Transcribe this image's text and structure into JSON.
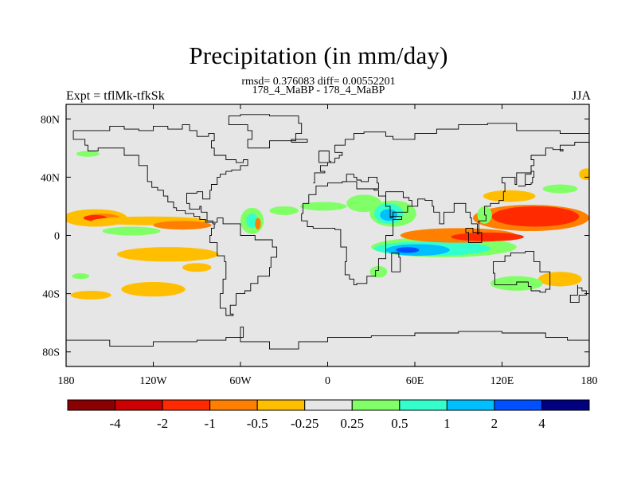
{
  "figure": {
    "title": "Precipitation (in mm/day)",
    "stats": "rmsd= 0.376083 diff= 0.00552201",
    "case": "178_4_MaBP - 178_4_MaBP",
    "left_label": "Expt = tflMk-tfkSk",
    "right_label": "JJA"
  },
  "chart_data": {
    "type": "heatmap",
    "variable": "Precipitation difference",
    "units": "mm/day",
    "season": "JJA",
    "x_axis": {
      "range": [
        -180,
        180
      ],
      "ticks": [
        -180,
        -120,
        -60,
        0,
        60,
        120,
        180
      ],
      "tick_labels": [
        "180",
        "120W",
        "60W",
        "0",
        "60E",
        "120E",
        "180"
      ]
    },
    "y_axis": {
      "range": [
        -90,
        90
      ],
      "ticks": [
        80,
        40,
        0,
        -40,
        -80
      ],
      "tick_labels": [
        "80N",
        "40N",
        "0",
        "40S",
        "80S"
      ]
    },
    "colorbar": {
      "colors": [
        "#8b0000",
        "#cc0000",
        "#ff2a00",
        "#ff7f00",
        "#ffbf00",
        "#e6e6e6",
        "#80ff66",
        "#33ffcc",
        "#00bfff",
        "#0050ff",
        "#000080"
      ],
      "boundaries": [
        "-4",
        "-2",
        "-1",
        "-0.5",
        "-0.25",
        "0.25",
        "0.5",
        "1",
        "2",
        "4"
      ]
    },
    "background_color": "#e6e6e6",
    "anomalies": [
      {
        "lon": -160,
        "lat": 12,
        "rlon": 22,
        "rlat": 6,
        "level": 4
      },
      {
        "lon": -155,
        "lat": 12,
        "rlon": 12,
        "rlat": 3,
        "level": 3
      },
      {
        "lon": -160,
        "lat": 12,
        "rlon": 8,
        "rlat": 2,
        "level": 2
      },
      {
        "lon": -122,
        "lat": 10,
        "rlon": 40,
        "rlat": 3,
        "level": 4
      },
      {
        "lon": -100,
        "lat": 7,
        "rlon": 20,
        "rlat": 3,
        "level": 3
      },
      {
        "lon": -135,
        "lat": 3,
        "rlon": 20,
        "rlat": 3,
        "level": 6
      },
      {
        "lon": -110,
        "lat": -13,
        "rlon": 35,
        "rlat": 5,
        "level": 4
      },
      {
        "lon": -90,
        "lat": -22,
        "rlon": 10,
        "rlat": 3,
        "level": 4
      },
      {
        "lon": -120,
        "lat": -37,
        "rlon": 22,
        "rlat": 5,
        "level": 4
      },
      {
        "lon": -163,
        "lat": -41,
        "rlon": 14,
        "rlat": 3,
        "level": 4
      },
      {
        "lon": -170,
        "lat": -28,
        "rlon": 6,
        "rlat": 2,
        "level": 6
      },
      {
        "lon": -165,
        "lat": 56,
        "rlon": 8,
        "rlat": 2,
        "level": 6
      },
      {
        "lon": -52,
        "lat": 10,
        "rlon": 8,
        "rlat": 9,
        "level": 6
      },
      {
        "lon": -52,
        "lat": 10,
        "rlon": 4,
        "rlat": 5,
        "level": 7
      },
      {
        "lon": -48,
        "lat": 8,
        "rlon": 2,
        "rlat": 4,
        "level": 3
      },
      {
        "lon": -30,
        "lat": 17,
        "rlon": 10,
        "rlat": 3,
        "level": 6
      },
      {
        "lon": -3,
        "lat": 20,
        "rlon": 16,
        "rlat": 3,
        "level": 6
      },
      {
        "lon": 25,
        "lat": 22,
        "rlon": 12,
        "rlat": 6,
        "level": 6
      },
      {
        "lon": 45,
        "lat": 15,
        "rlon": 16,
        "rlat": 9,
        "level": 6
      },
      {
        "lon": 42,
        "lat": 15,
        "rlon": 10,
        "rlat": 7,
        "level": 7
      },
      {
        "lon": 42,
        "lat": 14,
        "rlon": 6,
        "rlat": 4,
        "level": 8
      },
      {
        "lon": 80,
        "lat": -8,
        "rlon": 50,
        "rlat": 7,
        "level": 6
      },
      {
        "lon": 72,
        "lat": -9,
        "rlon": 40,
        "rlat": 5,
        "level": 7
      },
      {
        "lon": 62,
        "lat": -10,
        "rlon": 22,
        "rlat": 4,
        "level": 8
      },
      {
        "lon": 55,
        "lat": -10,
        "rlon": 8,
        "rlat": 2,
        "level": 9
      },
      {
        "lon": 35,
        "lat": -25,
        "rlon": 6,
        "rlat": 4,
        "level": 6
      },
      {
        "lon": 90,
        "lat": 0,
        "rlon": 40,
        "rlat": 5,
        "level": 3
      },
      {
        "lon": 110,
        "lat": -1,
        "rlon": 25,
        "rlat": 3,
        "level": 2
      },
      {
        "lon": 140,
        "lat": 12,
        "rlon": 40,
        "rlat": 9,
        "level": 3
      },
      {
        "lon": 143,
        "lat": 13,
        "rlon": 30,
        "rlat": 7,
        "level": 2
      },
      {
        "lon": 125,
        "lat": 27,
        "rlon": 18,
        "rlat": 4,
        "level": 4
      },
      {
        "lon": 108,
        "lat": 14,
        "rlon": 5,
        "rlat": 6,
        "level": 6
      },
      {
        "lon": 160,
        "lat": -30,
        "rlon": 15,
        "rlat": 5,
        "level": 4
      },
      {
        "lon": 130,
        "lat": -33,
        "rlon": 18,
        "rlat": 5,
        "level": 6
      },
      {
        "lon": 178,
        "lat": 42,
        "rlon": 5,
        "rlat": 4,
        "level": 4
      },
      {
        "lon": 160,
        "lat": 32,
        "rlon": 12,
        "rlat": 3,
        "level": 6
      }
    ],
    "coastlines": [
      [
        [
          -175,
          72
        ],
        [
          -160,
          72
        ],
        [
          -150,
          75
        ],
        [
          -140,
          73
        ],
        [
          -130,
          72
        ],
        [
          -120,
          75
        ],
        [
          -110,
          73
        ],
        [
          -100,
          76
        ],
        [
          -95,
          72
        ],
        [
          -90,
          68
        ],
        [
          -82,
          70
        ],
        [
          -78,
          65
        ],
        [
          -80,
          60
        ],
        [
          -78,
          55
        ],
        [
          -70,
          52
        ],
        [
          -63,
          50
        ],
        [
          -58,
          52
        ],
        [
          -55,
          48
        ],
        [
          -60,
          45
        ],
        [
          -66,
          44
        ],
        [
          -70,
          42
        ],
        [
          -74,
          40
        ],
        [
          -76,
          35
        ],
        [
          -80,
          31
        ],
        [
          -81,
          25
        ],
        [
          -86,
          30
        ],
        [
          -90,
          29
        ],
        [
          -97,
          27
        ],
        [
          -97,
          22
        ],
        [
          -95,
          18
        ],
        [
          -88,
          20
        ],
        [
          -87,
          16
        ],
        [
          -83,
          10
        ],
        [
          -79,
          8
        ],
        [
          -77,
          8
        ],
        [
          -78,
          5
        ],
        [
          -80,
          0
        ],
        [
          -81,
          -5
        ],
        [
          -76,
          -14
        ],
        [
          -71,
          -18
        ],
        [
          -70,
          -30
        ],
        [
          -72,
          -40
        ],
        [
          -74,
          -50
        ],
        [
          -70,
          -55
        ],
        [
          -65,
          -54
        ],
        [
          -67,
          -48
        ],
        [
          -63,
          -40
        ],
        [
          -57,
          -38
        ],
        [
          -53,
          -33
        ],
        [
          -48,
          -28
        ],
        [
          -40,
          -22
        ],
        [
          -39,
          -15
        ],
        [
          -35,
          -8
        ],
        [
          -38,
          -3
        ],
        [
          -50,
          0
        ],
        [
          -60,
          8
        ],
        [
          -72,
          12
        ],
        [
          -76,
          9
        ],
        [
          -81,
          9
        ],
        [
          -84,
          11
        ],
        [
          -88,
          13
        ],
        [
          -92,
          15
        ],
        [
          -98,
          17
        ],
        [
          -104,
          19
        ],
        [
          -106,
          23
        ],
        [
          -110,
          27
        ],
        [
          -113,
          31
        ],
        [
          -117,
          33
        ],
        [
          -121,
          37
        ],
        [
          -124,
          42
        ],
        [
          -124,
          48
        ],
        [
          -130,
          55
        ],
        [
          -140,
          60
        ],
        [
          -150,
          60
        ],
        [
          -158,
          58
        ],
        [
          -165,
          62
        ],
        [
          -167,
          66
        ],
        [
          -175,
          72
        ]
      ],
      [
        [
          -55,
          60
        ],
        [
          -45,
          60
        ],
        [
          -40,
          65
        ],
        [
          -22,
          70
        ],
        [
          -18,
          77
        ],
        [
          -20,
          82
        ],
        [
          -40,
          83
        ],
        [
          -60,
          82
        ],
        [
          -68,
          76
        ],
        [
          -55,
          72
        ],
        [
          -52,
          66
        ],
        [
          -55,
          60
        ]
      ],
      [
        [
          -18,
          15
        ],
        [
          -17,
          22
        ],
        [
          -13,
          28
        ],
        [
          -8,
          34
        ],
        [
          0,
          36
        ],
        [
          10,
          37
        ],
        [
          20,
          32
        ],
        [
          32,
          31
        ],
        [
          35,
          27
        ],
        [
          40,
          20
        ],
        [
          43,
          13
        ],
        [
          51,
          11
        ],
        [
          45,
          0
        ],
        [
          40,
          -10
        ],
        [
          40,
          -16
        ],
        [
          35,
          -24
        ],
        [
          33,
          -28
        ],
        [
          27,
          -33
        ],
        [
          20,
          -34
        ],
        [
          18,
          -30
        ],
        [
          15,
          -27
        ],
        [
          12,
          -18
        ],
        [
          13,
          -8
        ],
        [
          9,
          -1
        ],
        [
          9,
          4
        ],
        [
          5,
          5
        ],
        [
          -5,
          5
        ],
        [
          -10,
          6
        ],
        [
          -14,
          10
        ],
        [
          -18,
          15
        ]
      ],
      [
        [
          -10,
          36
        ],
        [
          -9,
          43
        ],
        [
          -2,
          44
        ],
        [
          -5,
          48
        ],
        [
          0,
          50
        ],
        [
          5,
          53
        ],
        [
          8,
          55
        ],
        [
          10,
          57
        ],
        [
          5,
          60
        ],
        [
          5,
          62
        ],
        [
          12,
          66
        ],
        [
          18,
          70
        ],
        [
          25,
          71
        ],
        [
          40,
          68
        ],
        [
          45,
          66
        ],
        [
          60,
          70
        ],
        [
          75,
          73
        ],
        [
          90,
          76
        ],
        [
          110,
          77
        ],
        [
          130,
          72
        ],
        [
          140,
          72
        ],
        [
          160,
          70
        ],
        [
          175,
          70
        ],
        [
          180,
          68
        ]
      ],
      [
        [
          10,
          37
        ],
        [
          13,
          42
        ],
        [
          18,
          40
        ],
        [
          20,
          38
        ],
        [
          23,
          37
        ],
        [
          28,
          40
        ],
        [
          34,
          36
        ],
        [
          35,
          32
        ],
        [
          32,
          31
        ]
      ],
      [
        [
          40,
          20
        ],
        [
          40,
          30
        ],
        [
          48,
          30
        ],
        [
          52,
          26
        ],
        [
          56,
          24
        ],
        [
          58,
          20
        ],
        [
          55,
          16
        ],
        [
          45,
          12
        ],
        [
          43,
          13
        ]
      ],
      [
        [
          58,
          20
        ],
        [
          62,
          25
        ],
        [
          67,
          24
        ],
        [
          72,
          20
        ],
        [
          73,
          16
        ],
        [
          77,
          8
        ],
        [
          80,
          12
        ],
        [
          80,
          16
        ],
        [
          87,
          22
        ],
        [
          92,
          22
        ],
        [
          95,
          16
        ],
        [
          98,
          12
        ],
        [
          99,
          8
        ],
        [
          103,
          1
        ],
        [
          104,
          10
        ],
        [
          106,
          10
        ],
        [
          109,
          14
        ],
        [
          108,
          20
        ],
        [
          112,
          22
        ],
        [
          118,
          24
        ],
        [
          121,
          30
        ],
        [
          122,
          36
        ],
        [
          120,
          40
        ],
        [
          125,
          40
        ],
        [
          129,
          35
        ],
        [
          130,
          43
        ],
        [
          140,
          48
        ],
        [
          142,
          52
        ],
        [
          140,
          55
        ],
        [
          150,
          60
        ],
        [
          155,
          59
        ],
        [
          162,
          58
        ],
        [
          160,
          62
        ],
        [
          170,
          64
        ],
        [
          180,
          65
        ]
      ],
      [
        [
          114,
          -22
        ],
        [
          114,
          -26
        ],
        [
          115,
          -34
        ],
        [
          123,
          -34
        ],
        [
          130,
          -32
        ],
        [
          138,
          -35
        ],
        [
          140,
          -38
        ],
        [
          146,
          -39
        ],
        [
          150,
          -37
        ],
        [
          153,
          -30
        ],
        [
          153,
          -25
        ],
        [
          146,
          -18
        ],
        [
          142,
          -11
        ],
        [
          136,
          -12
        ],
        [
          130,
          -12
        ],
        [
          126,
          -14
        ],
        [
          122,
          -18
        ],
        [
          114,
          -22
        ]
      ],
      [
        [
          95,
          5
        ],
        [
          100,
          2
        ],
        [
          106,
          -5
        ],
        [
          103,
          -5
        ],
        [
          97,
          2
        ],
        [
          95,
          5
        ]
      ],
      [
        [
          131,
          34
        ],
        [
          136,
          35
        ],
        [
          140,
          36
        ],
        [
          141,
          40
        ],
        [
          142,
          44
        ],
        [
          140,
          42
        ],
        [
          136,
          34
        ],
        [
          131,
          34
        ]
      ],
      [
        [
          -25,
          64
        ],
        [
          -14,
          64
        ],
        [
          -14,
          66
        ],
        [
          -24,
          66
        ],
        [
          -25,
          64
        ]
      ],
      [
        [
          -6,
          50
        ],
        [
          2,
          51
        ],
        [
          1,
          58
        ],
        [
          -5,
          58
        ],
        [
          -6,
          50
        ]
      ],
      [
        [
          44,
          -25
        ],
        [
          50,
          -15
        ],
        [
          49,
          -12
        ],
        [
          44,
          -17
        ],
        [
          44,
          -25
        ]
      ],
      [
        [
          173,
          -41
        ],
        [
          178,
          -38
        ],
        [
          175,
          -36
        ],
        [
          172,
          -34
        ],
        [
          172,
          -41
        ],
        [
          167,
          -46
        ],
        [
          170,
          -46
        ],
        [
          173,
          -41
        ]
      ],
      [
        [
          -180,
          -72
        ],
        [
          -150,
          -76
        ],
        [
          -120,
          -73
        ],
        [
          -90,
          -72
        ],
        [
          -70,
          -70
        ],
        [
          -58,
          -63
        ],
        [
          -60,
          -73
        ],
        [
          -40,
          -78
        ],
        [
          -20,
          -73
        ],
        [
          0,
          -70
        ],
        [
          30,
          -69
        ],
        [
          60,
          -67
        ],
        [
          90,
          -66
        ],
        [
          120,
          -67
        ],
        [
          150,
          -70
        ],
        [
          165,
          -72
        ],
        [
          180,
          -75
        ]
      ]
    ]
  }
}
